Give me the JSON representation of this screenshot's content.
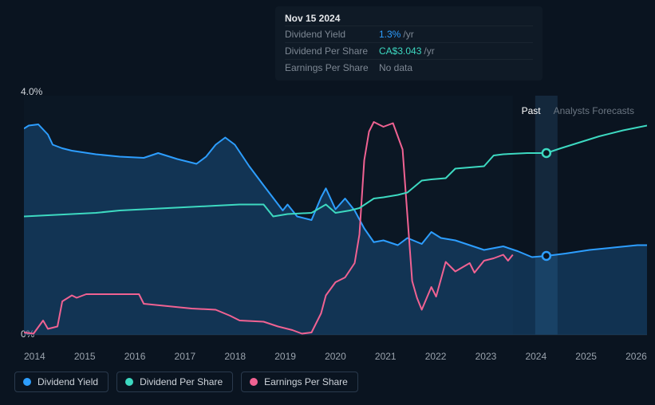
{
  "tooltip": {
    "date": "Nov 15 2024",
    "rows": [
      {
        "label": "Dividend Yield",
        "value": "1.3%",
        "unit": "/yr",
        "color": "blue"
      },
      {
        "label": "Dividend Per Share",
        "value": "CA$3.043",
        "unit": "/yr",
        "color": "green"
      },
      {
        "label": "Earnings Per Share",
        "value": "No data",
        "unit": "",
        "color": "none"
      }
    ]
  },
  "period_labels": {
    "past": "Past",
    "forecast": "Analysts Forecasts"
  },
  "y_axis": {
    "min_label": "0%",
    "max_label": "4.0%",
    "ymin": 0,
    "ymax": 4.0
  },
  "x_axis": {
    "min": 2014,
    "max": 2027,
    "ticks": [
      "2014",
      "2015",
      "2016",
      "2017",
      "2018",
      "2019",
      "2020",
      "2021",
      "2022",
      "2023",
      "2024",
      "2025",
      "2026"
    ]
  },
  "vertical_marker_x": 2024.9,
  "forecast_start_x": 2024.2,
  "colors": {
    "dividend_yield": "#2d9eff",
    "dividend_per_share": "#3dd9c1",
    "earnings_per_share": "#f06292",
    "background": "#0a1420",
    "past_shade": "#0e1d2e",
    "marker_band": "#1a3550",
    "axis_text": "#9aa3ad",
    "grid_line": "#1a2632"
  },
  "legend": [
    {
      "label": "Dividend Yield",
      "colorkey": "dividend_yield"
    },
    {
      "label": "Dividend Per Share",
      "colorkey": "dividend_per_share"
    },
    {
      "label": "Earnings Per Share",
      "colorkey": "earnings_per_share"
    }
  ],
  "series": {
    "dividend_yield": {
      "fill_opacity": 0.22,
      "line_width": 2,
      "marker_x": 2024.9,
      "marker_y": 1.32,
      "points": [
        [
          2014.0,
          3.45
        ],
        [
          2014.1,
          3.5
        ],
        [
          2014.3,
          3.52
        ],
        [
          2014.5,
          3.35
        ],
        [
          2014.6,
          3.18
        ],
        [
          2014.8,
          3.12
        ],
        [
          2015.0,
          3.08
        ],
        [
          2015.5,
          3.02
        ],
        [
          2016.0,
          2.98
        ],
        [
          2016.5,
          2.96
        ],
        [
          2016.8,
          3.04
        ],
        [
          2017.2,
          2.94
        ],
        [
          2017.6,
          2.86
        ],
        [
          2017.8,
          2.98
        ],
        [
          2018.0,
          3.18
        ],
        [
          2018.2,
          3.3
        ],
        [
          2018.4,
          3.18
        ],
        [
          2018.7,
          2.82
        ],
        [
          2019.0,
          2.5
        ],
        [
          2019.4,
          2.08
        ],
        [
          2019.5,
          2.18
        ],
        [
          2019.7,
          1.98
        ],
        [
          2020.0,
          1.92
        ],
        [
          2020.2,
          2.3
        ],
        [
          2020.3,
          2.45
        ],
        [
          2020.5,
          2.1
        ],
        [
          2020.7,
          2.28
        ],
        [
          2020.9,
          2.08
        ],
        [
          2021.1,
          1.78
        ],
        [
          2021.3,
          1.55
        ],
        [
          2021.5,
          1.58
        ],
        [
          2021.8,
          1.5
        ],
        [
          2022.0,
          1.62
        ],
        [
          2022.3,
          1.52
        ],
        [
          2022.5,
          1.72
        ],
        [
          2022.7,
          1.62
        ],
        [
          2023.0,
          1.58
        ],
        [
          2023.3,
          1.5
        ],
        [
          2023.6,
          1.42
        ],
        [
          2024.0,
          1.48
        ],
        [
          2024.3,
          1.4
        ],
        [
          2024.6,
          1.3
        ],
        [
          2024.9,
          1.32
        ],
        [
          2025.3,
          1.36
        ],
        [
          2025.8,
          1.42
        ],
        [
          2026.3,
          1.46
        ],
        [
          2026.8,
          1.5
        ],
        [
          2027.0,
          1.5
        ]
      ]
    },
    "dividend_per_share": {
      "fill_opacity": 0,
      "line_width": 2,
      "marker_x": 2024.9,
      "marker_y": 3.04,
      "points": [
        [
          2014.0,
          1.98
        ],
        [
          2014.5,
          2.0
        ],
        [
          2015.0,
          2.02
        ],
        [
          2015.5,
          2.04
        ],
        [
          2016.0,
          2.08
        ],
        [
          2016.5,
          2.1
        ],
        [
          2017.0,
          2.12
        ],
        [
          2017.5,
          2.14
        ],
        [
          2018.0,
          2.16
        ],
        [
          2018.5,
          2.18
        ],
        [
          2019.0,
          2.18
        ],
        [
          2019.2,
          1.98
        ],
        [
          2019.5,
          2.02
        ],
        [
          2020.0,
          2.04
        ],
        [
          2020.3,
          2.18
        ],
        [
          2020.5,
          2.04
        ],
        [
          2020.8,
          2.08
        ],
        [
          2021.0,
          2.12
        ],
        [
          2021.3,
          2.28
        ],
        [
          2021.5,
          2.3
        ],
        [
          2021.8,
          2.34
        ],
        [
          2022.0,
          2.38
        ],
        [
          2022.3,
          2.58
        ],
        [
          2022.5,
          2.6
        ],
        [
          2022.8,
          2.62
        ],
        [
          2023.0,
          2.78
        ],
        [
          2023.3,
          2.8
        ],
        [
          2023.6,
          2.82
        ],
        [
          2023.8,
          3.0
        ],
        [
          2024.0,
          3.02
        ],
        [
          2024.5,
          3.04
        ],
        [
          2024.9,
          3.04
        ],
        [
          2025.2,
          3.12
        ],
        [
          2025.6,
          3.22
        ],
        [
          2026.0,
          3.32
        ],
        [
          2026.5,
          3.42
        ],
        [
          2027.0,
          3.5
        ]
      ]
    },
    "earnings_per_share": {
      "fill_opacity": 0,
      "line_width": 2,
      "points": [
        [
          2014.0,
          0.04
        ],
        [
          2014.2,
          0.02
        ],
        [
          2014.4,
          0.24
        ],
        [
          2014.5,
          0.1
        ],
        [
          2014.7,
          0.14
        ],
        [
          2014.8,
          0.56
        ],
        [
          2015.0,
          0.66
        ],
        [
          2015.1,
          0.62
        ],
        [
          2015.3,
          0.68
        ],
        [
          2015.4,
          0.68
        ],
        [
          2016.0,
          0.68
        ],
        [
          2016.4,
          0.68
        ],
        [
          2016.5,
          0.52
        ],
        [
          2017.0,
          0.48
        ],
        [
          2017.5,
          0.44
        ],
        [
          2018.0,
          0.42
        ],
        [
          2018.3,
          0.32
        ],
        [
          2018.5,
          0.24
        ],
        [
          2019.0,
          0.22
        ],
        [
          2019.3,
          0.14
        ],
        [
          2019.6,
          0.08
        ],
        [
          2019.8,
          0.02
        ],
        [
          2020.0,
          0.04
        ],
        [
          2020.2,
          0.36
        ],
        [
          2020.3,
          0.66
        ],
        [
          2020.5,
          0.88
        ],
        [
          2020.7,
          0.96
        ],
        [
          2020.9,
          1.2
        ],
        [
          2021.0,
          1.68
        ],
        [
          2021.1,
          2.92
        ],
        [
          2021.2,
          3.4
        ],
        [
          2021.3,
          3.56
        ],
        [
          2021.5,
          3.48
        ],
        [
          2021.7,
          3.54
        ],
        [
          2021.9,
          3.1
        ],
        [
          2022.0,
          2.0
        ],
        [
          2022.1,
          0.9
        ],
        [
          2022.2,
          0.62
        ],
        [
          2022.3,
          0.42
        ],
        [
          2022.5,
          0.8
        ],
        [
          2022.6,
          0.64
        ],
        [
          2022.8,
          1.22
        ],
        [
          2023.0,
          1.06
        ],
        [
          2023.3,
          1.2
        ],
        [
          2023.4,
          1.04
        ],
        [
          2023.6,
          1.24
        ],
        [
          2023.8,
          1.28
        ],
        [
          2024.0,
          1.34
        ],
        [
          2024.1,
          1.24
        ],
        [
          2024.2,
          1.34
        ]
      ]
    }
  }
}
